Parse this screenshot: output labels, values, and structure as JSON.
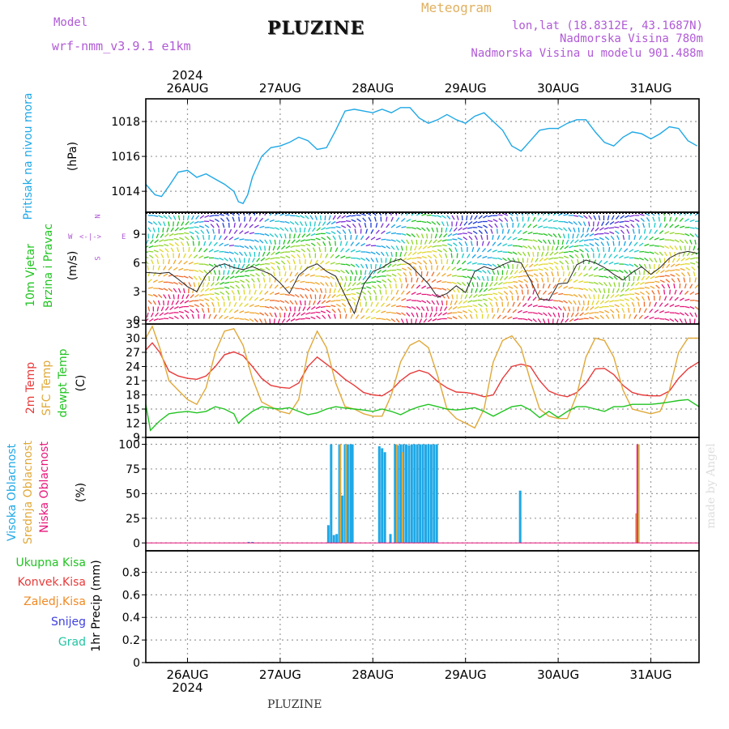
{
  "header": {
    "model_label": "Model",
    "model_name": "wrf-nmm_v3.9.1 e1km",
    "station": "PLUZINE",
    "product": "Meteogram",
    "lonlat": "lon,lat (18.8312E, 43.1687N)",
    "elevation": "Nadmorska Visina 780m",
    "model_elevation": "Nadmorska Visina u modelu 901.488m",
    "watermark": "made by Angel",
    "footer": "PLUZINE"
  },
  "colors": {
    "pressure": "#1fa8e6",
    "temp2m": "#e83a3a",
    "sfc": "#e0a93a",
    "dewpt": "#22c422",
    "high_cloud": "#1fa8e6",
    "mid_cloud": "#e0a93a",
    "low_cloud": "#e6177a",
    "rain": "#22c422",
    "conv": "#e83a3a",
    "freez": "#f08a24",
    "snow": "#4040e0",
    "grad": "#22c4a4",
    "wind_speed": "#222222"
  },
  "panel_labels": {
    "pressure": [
      "Pritisak na nivou mora",
      "(hPa)"
    ],
    "wind": [
      "10m Vjetar",
      "Brzina i Pravac",
      "(m/s)"
    ],
    "compass": [
      "W",
      "E",
      "N",
      "S"
    ],
    "temp": [
      "2m Temp",
      "SFC Temp",
      "dewpt Temp",
      "(C)"
    ],
    "cloud": [
      "Visoka Oblacnost",
      "Srednja Oblacnost",
      "Niska Oblacnost",
      "(%)"
    ],
    "precip": [
      "Ukupna Kisa",
      "Konvek.Kisa",
      "Zaledj.Kisa",
      "Snijeg",
      "Grad",
      "1hr Precip (mm)"
    ]
  },
  "chart_data": {
    "type": "line",
    "year": "2024",
    "days": [
      "26AUG",
      "27AUG",
      "28AUG",
      "29AUG",
      "30AUG",
      "31AUG"
    ],
    "x_range_days": [
      25.55,
      31.52
    ],
    "panels": [
      {
        "name": "pressure",
        "ylim": [
          1012.8,
          1019.3
        ],
        "yticks": [
          1014,
          1016,
          1018
        ],
        "series": [
          {
            "key": "pressure",
            "x": [
              25.55,
              25.65,
              25.72,
              25.8,
              25.9,
              26.0,
              26.1,
              26.2,
              26.3,
              26.4,
              26.5,
              26.55,
              26.6,
              26.65,
              26.7,
              26.8,
              26.9,
              27.0,
              27.1,
              27.2,
              27.3,
              27.4,
              27.5,
              27.6,
              27.7,
              27.8,
              27.9,
              28.0,
              28.1,
              28.2,
              28.3,
              28.4,
              28.5,
              28.6,
              28.7,
              28.8,
              28.9,
              29.0,
              29.1,
              29.2,
              29.3,
              29.4,
              29.5,
              29.6,
              29.7,
              29.8,
              29.9,
              30.0,
              30.1,
              30.2,
              30.3,
              30.4,
              30.5,
              30.6,
              30.7,
              30.8,
              30.9,
              31.0,
              31.1,
              31.2,
              31.3,
              31.4,
              31.5
            ],
            "y": [
              1014.4,
              1013.8,
              1013.7,
              1014.3,
              1015.1,
              1015.2,
              1014.8,
              1015.0,
              1014.7,
              1014.4,
              1014.0,
              1013.4,
              1013.3,
              1013.8,
              1014.8,
              1016.0,
              1016.5,
              1016.6,
              1016.8,
              1017.1,
              1016.9,
              1016.4,
              1016.5,
              1017.5,
              1018.6,
              1018.7,
              1018.6,
              1018.5,
              1018.7,
              1018.5,
              1018.8,
              1018.8,
              1018.2,
              1017.9,
              1018.1,
              1018.4,
              1018.1,
              1017.9,
              1018.3,
              1018.5,
              1018.0,
              1017.5,
              1016.6,
              1016.3,
              1016.9,
              1017.5,
              1017.6,
              1017.6,
              1017.9,
              1018.1,
              1018.1,
              1017.4,
              1016.8,
              1016.6,
              1017.1,
              1017.4,
              1017.3,
              1017.0,
              1017.3,
              1017.7,
              1017.6,
              1016.9,
              1016.6
            ]
          }
        ]
      },
      {
        "name": "wind",
        "ylim": [
          -0.4,
          11.3
        ],
        "yticks": [
          0,
          3,
          6,
          9
        ],
        "series": [
          {
            "key": "wind_speed",
            "x": [
              25.55,
              25.7,
              25.8,
              25.9,
              26.0,
              26.1,
              26.2,
              26.3,
              26.4,
              26.5,
              26.6,
              26.7,
              26.8,
              26.9,
              27.0,
              27.1,
              27.2,
              27.3,
              27.4,
              27.5,
              27.6,
              27.7,
              27.8,
              27.9,
              28.0,
              28.1,
              28.2,
              28.3,
              28.4,
              28.5,
              28.6,
              28.7,
              28.8,
              28.9,
              29.0,
              29.1,
              29.2,
              29.3,
              29.4,
              29.5,
              29.6,
              29.7,
              29.8,
              29.9,
              30.0,
              30.1,
              30.2,
              30.3,
              30.4,
              30.5,
              30.6,
              30.7,
              30.8,
              30.9,
              31.0,
              31.1,
              31.2,
              31.3,
              31.4,
              31.5
            ],
            "y": [
              5.0,
              4.9,
              5.0,
              4.3,
              3.5,
              3.0,
              4.7,
              5.6,
              5.9,
              5.5,
              5.3,
              5.6,
              5.2,
              4.8,
              3.9,
              2.8,
              4.7,
              5.5,
              5.9,
              5.1,
              4.6,
              2.6,
              0.7,
              3.7,
              5.1,
              5.5,
              6.1,
              6.4,
              5.8,
              4.8,
              3.8,
              2.4,
              2.8,
              3.6,
              2.9,
              5.1,
              5.6,
              5.3,
              5.8,
              6.2,
              6.0,
              4.2,
              2.2,
              2.1,
              3.8,
              3.9,
              5.8,
              6.3,
              6.0,
              5.5,
              4.8,
              4.2,
              5.0,
              5.6,
              4.8,
              5.5,
              6.5,
              7.0,
              7.2,
              7.0
            ]
          }
        ]
      },
      {
        "name": "temperature",
        "ylim": [
          9,
          33
        ],
        "yticks": [
          9,
          12,
          15,
          18,
          21,
          24,
          27,
          30,
          33
        ],
        "series": [
          {
            "key": "temp2m",
            "x": [
              25.55,
              25.62,
              25.7,
              25.8,
              25.9,
              26.0,
              26.1,
              26.2,
              26.3,
              26.4,
              26.5,
              26.6,
              26.7,
              26.8,
              26.9,
              27.0,
              27.1,
              27.2,
              27.3,
              27.4,
              27.5,
              27.6,
              27.7,
              27.8,
              27.9,
              28.0,
              28.1,
              28.2,
              28.3,
              28.4,
              28.5,
              28.6,
              28.7,
              28.8,
              28.9,
              29.0,
              29.1,
              29.2,
              29.3,
              29.4,
              29.5,
              29.6,
              29.7,
              29.8,
              29.9,
              30.0,
              30.1,
              30.2,
              30.3,
              30.4,
              30.5,
              30.6,
              30.7,
              30.8,
              30.9,
              31.0,
              31.1,
              31.2,
              31.3,
              31.4,
              31.52
            ],
            "y": [
              27.5,
              29,
              27,
              23,
              22,
              21.5,
              21.3,
              22,
              24,
              26.5,
              27.1,
              26.3,
              24,
              21.5,
              20,
              19.6,
              19.4,
              20.5,
              24,
              26,
              24.5,
              23,
              21.3,
              20,
              18.5,
              18,
              17.8,
              19,
              21,
              22.5,
              23.2,
              22.6,
              20.8,
              19.5,
              18.6,
              18.5,
              18.2,
              17.6,
              18,
              21.5,
              24,
              24.5,
              24,
              21,
              18.8,
              18,
              17.6,
              18.5,
              20.5,
              23.5,
              23.6,
              22.3,
              20,
              18.5,
              18,
              17.8,
              17.8,
              18.8,
              21.5,
              23.5,
              25
            ]
          },
          {
            "key": "sfc",
            "x": [
              25.55,
              25.62,
              25.7,
              25.8,
              25.9,
              26.0,
              26.1,
              26.2,
              26.3,
              26.4,
              26.5,
              26.6,
              26.7,
              26.8,
              26.9,
              27.0,
              27.1,
              27.2,
              27.3,
              27.4,
              27.5,
              27.6,
              27.7,
              27.8,
              27.9,
              28.0,
              28.1,
              28.2,
              28.3,
              28.4,
              28.5,
              28.6,
              28.7,
              28.8,
              28.9,
              29.0,
              29.1,
              29.2,
              29.3,
              29.4,
              29.5,
              29.6,
              29.7,
              29.8,
              29.9,
              30.0,
              30.1,
              30.2,
              30.3,
              30.4,
              30.5,
              30.6,
              30.7,
              30.8,
              30.9,
              31.0,
              31.1,
              31.2,
              31.3,
              31.4,
              31.52
            ],
            "y": [
              30,
              32.5,
              28,
              21,
              19,
              17,
              16,
              19.5,
              27,
              31.5,
              32,
              28.5,
              21.5,
              16.5,
              15.5,
              14.5,
              14,
              17,
              27,
              31.5,
              28,
              20.5,
              15.5,
              15,
              14,
              13.5,
              13.5,
              18,
              25,
              28.5,
              29.5,
              28,
              22,
              15,
              13,
              12,
              11,
              15,
              25,
              29.5,
              30.5,
              28,
              21,
              15,
              13.5,
              13,
              13,
              18,
              26,
              30,
              29.5,
              26,
              19,
              15,
              14.5,
              14,
              14.5,
              19,
              27,
              30,
              30
            ]
          },
          {
            "key": "dewpt",
            "x": [
              25.55,
              25.6,
              25.65,
              25.7,
              25.8,
              25.9,
              26.0,
              26.1,
              26.2,
              26.3,
              26.4,
              26.5,
              26.55,
              26.6,
              26.7,
              26.8,
              26.9,
              27.0,
              27.1,
              27.2,
              27.3,
              27.4,
              27.5,
              27.6,
              27.7,
              27.8,
              27.9,
              28.0,
              28.1,
              28.2,
              28.3,
              28.4,
              28.5,
              28.6,
              28.7,
              28.8,
              28.9,
              29.0,
              29.1,
              29.2,
              29.3,
              29.4,
              29.5,
              29.6,
              29.7,
              29.8,
              29.9,
              30.0,
              30.1,
              30.2,
              30.3,
              30.4,
              30.5,
              30.6,
              30.7,
              30.8,
              30.9,
              31.0,
              31.1,
              31.2,
              31.3,
              31.4,
              31.52
            ],
            "y": [
              16,
              10.5,
              11.5,
              12.5,
              14,
              14.3,
              14.5,
              14.2,
              14.5,
              15.5,
              15,
              14,
              12,
              13,
              14.5,
              15.5,
              15.2,
              15,
              15.3,
              14.5,
              13.8,
              14.2,
              15,
              15.5,
              15.2,
              15,
              14.8,
              14.5,
              15,
              14.5,
              13.8,
              14.8,
              15.5,
              16,
              15.5,
              15,
              14.8,
              15,
              15.3,
              14.5,
              13.5,
              14.5,
              15.5,
              15.8,
              14.8,
              13.2,
              14.5,
              13.2,
              14.5,
              15.5,
              15.5,
              15,
              14.5,
              15.5,
              15.5,
              16,
              16,
              16,
              16.2,
              16.5,
              16.8,
              17,
              15.5
            ]
          }
        ]
      },
      {
        "name": "cloud",
        "type": "bar",
        "ylim": [
          -8,
          107
        ],
        "yticks": [
          0,
          25,
          50,
          75,
          100
        ],
        "high": {
          "x": [
            26.66,
            26.7,
            27.52,
            27.55,
            27.58,
            27.61,
            27.64,
            27.67,
            27.7,
            27.73,
            27.76,
            27.78,
            28.07,
            28.1,
            28.13,
            28.19,
            28.24,
            28.27,
            28.3,
            28.33,
            28.36,
            28.39,
            28.42,
            28.45,
            28.48,
            28.51,
            28.54,
            28.57,
            28.6,
            28.63,
            28.66,
            28.69,
            29.59,
            30.86
          ],
          "y": [
            1,
            1,
            18,
            100,
            8,
            9,
            100,
            48,
            100,
            100,
            100,
            100,
            98,
            96,
            92,
            9,
            100,
            99,
            100,
            100,
            100,
            99,
            100,
            100,
            100,
            100,
            100,
            100,
            100,
            100,
            100,
            100,
            53,
            100
          ]
        },
        "mid": {
          "x": [
            27.65,
            27.71,
            28.26,
            28.32,
            30.84,
            30.87
          ],
          "y": [
            100,
            100,
            100,
            92,
            30,
            100
          ]
        },
        "low": {
          "x": [
            30.85
          ],
          "y": [
            100
          ]
        }
      },
      {
        "name": "precip",
        "ylim": [
          0,
          0.99
        ],
        "yticks": [
          0,
          0.2,
          0.4,
          0.6,
          0.8
        ],
        "series": []
      }
    ]
  }
}
